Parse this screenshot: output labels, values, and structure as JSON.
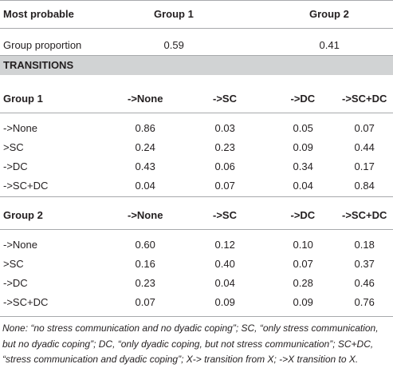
{
  "header": [
    "Most probable",
    "Group 1",
    "Group 2"
  ],
  "summary": [
    "Group proportion",
    "0.59",
    "0.41"
  ],
  "section": "TRANSITIONS",
  "groups": [
    {
      "header": [
        "Group 1",
        "->None",
        "->SC",
        "->DC",
        "->SC+DC"
      ],
      "rows": [
        [
          "->None",
          "0.86",
          "0.03",
          "0.05",
          "0.07"
        ],
        [
          ">SC",
          "0.24",
          "0.23",
          "0.09",
          "0.44"
        ],
        [
          "->DC",
          "0.43",
          "0.06",
          "0.34",
          "0.17"
        ],
        [
          "->SC+DC",
          "0.04",
          "0.07",
          "0.04",
          "0.84"
        ]
      ]
    },
    {
      "header": [
        "Group 2",
        "->None",
        "->SC",
        "->DC",
        "->SC+DC"
      ],
      "rows": [
        [
          "->None",
          "0.60",
          "0.12",
          "0.10",
          "0.18"
        ],
        [
          ">SC",
          "0.16",
          "0.40",
          "0.07",
          "0.37"
        ],
        [
          "->DC",
          "0.23",
          "0.04",
          "0.28",
          "0.46"
        ],
        [
          "->SC+DC",
          "0.07",
          "0.09",
          "0.09",
          "0.76"
        ]
      ]
    }
  ],
  "footnote": "None: “no stress communication and no dyadic coping”; SC, “only stress communication, but no dyadic coping”; DC, “only dyadic coping, but not stress communication”; SC+DC, “stress communication and dyadic coping”; X-> transition from X; ->X transition to X."
}
